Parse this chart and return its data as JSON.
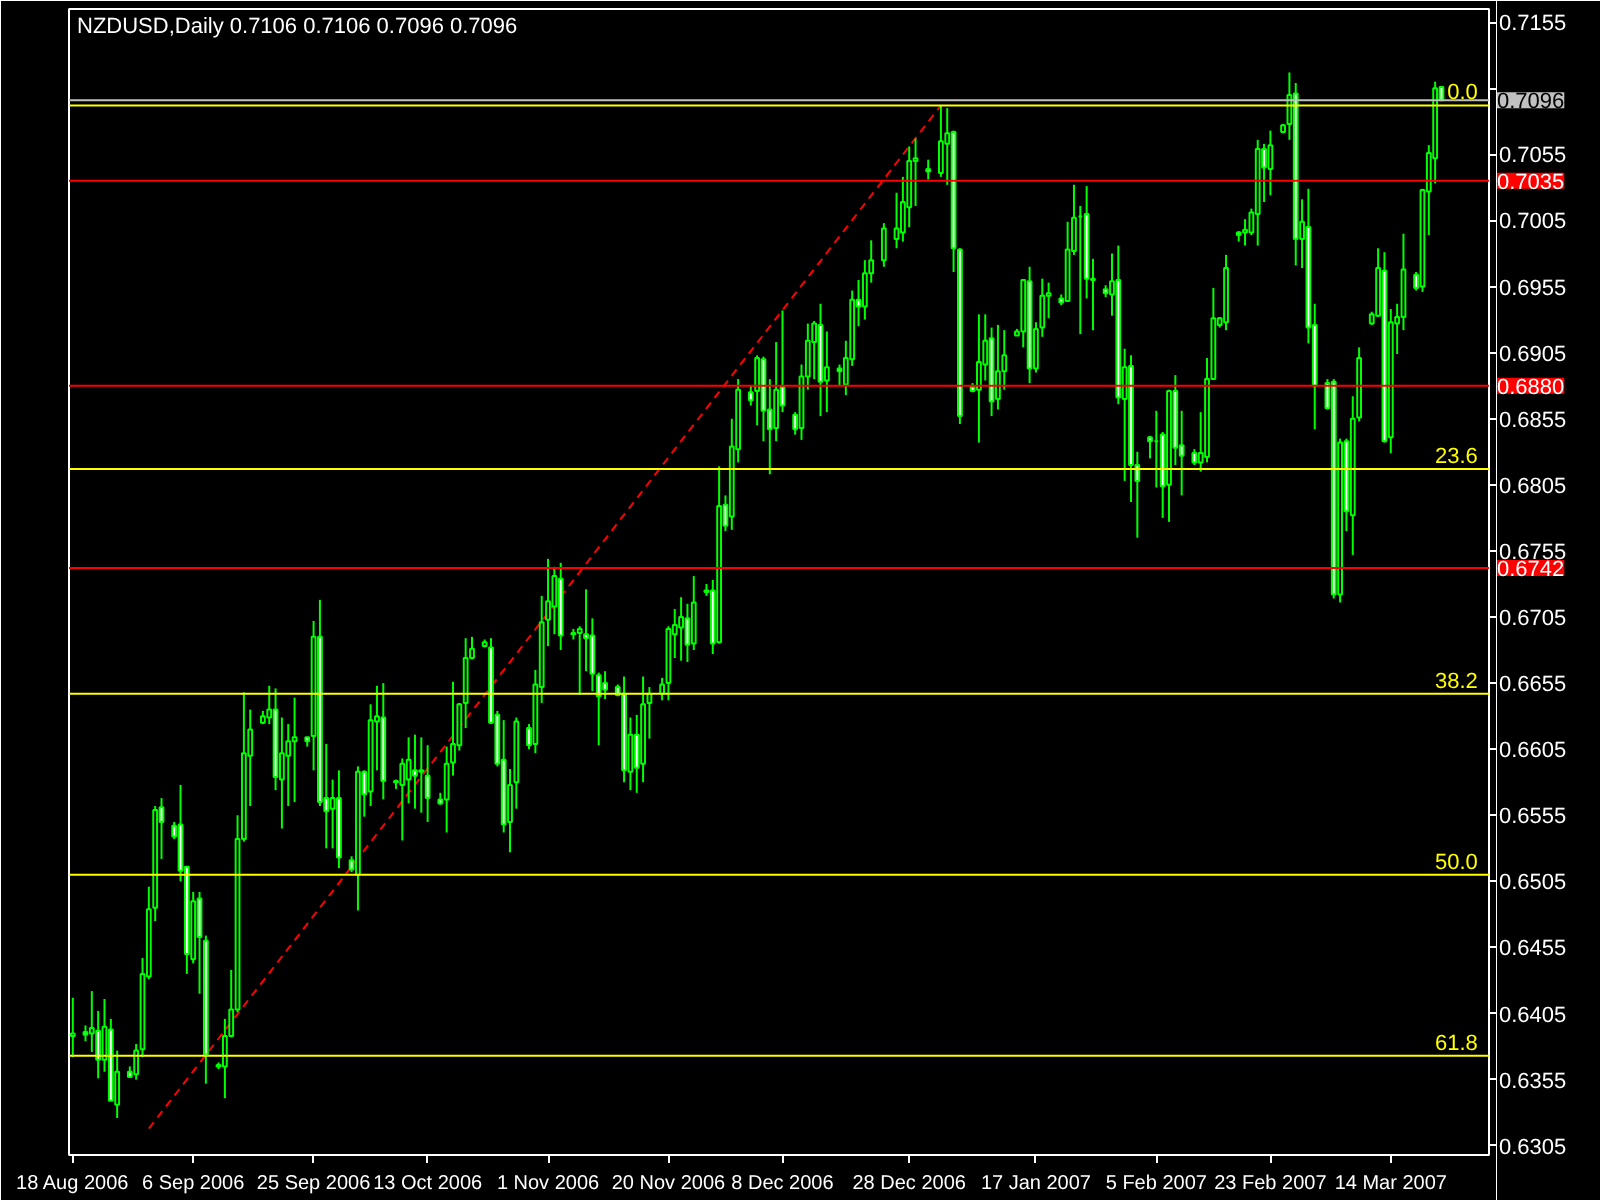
{
  "chart_data": {
    "type": "candlestick",
    "title": "NZDUSD,Daily  0.7106 0.7106 0.7096 0.7096",
    "xlim": [
      "2006-08-18",
      "2007-03-29"
    ],
    "xticks": [
      {
        "value": "2006-08-18",
        "label": "18 Aug 2006"
      },
      {
        "value": "2006-09-06",
        "label": "6 Sep 2006"
      },
      {
        "value": "2006-09-25",
        "label": "25 Sep 2006"
      },
      {
        "value": "2006-10-13",
        "label": "13 Oct 2006"
      },
      {
        "value": "2006-11-01",
        "label": "1 Nov 2006"
      },
      {
        "value": "2006-11-20",
        "label": "20 Nov 2006"
      },
      {
        "value": "2006-12-08",
        "label": "8 Dec 2006"
      },
      {
        "value": "2006-12-28",
        "label": "28 Dec 2006"
      },
      {
        "value": "2007-01-17",
        "label": "17 Jan 2007"
      },
      {
        "value": "2007-02-05",
        "label": "5 Feb 2007"
      },
      {
        "value": "2007-02-23",
        "label": "23 Feb 2007"
      },
      {
        "value": "2007-03-14",
        "label": "14 Mar 2007"
      }
    ],
    "ylim": [
      0.6298,
      0.7165
    ],
    "yticks": [
      0.7155,
      {
        "value": 0.7105,
        "label": null
      },
      0.7055,
      0.7005,
      0.6955,
      0.6905,
      0.6855,
      0.6805,
      0.6755,
      0.6705,
      0.6655,
      0.6605,
      0.6555,
      0.6505,
      0.6455,
      0.6405,
      0.6355,
      0.6305
    ],
    "ref_lines": [
      {
        "axis": "y",
        "value": 0.7096,
        "label": "0.7096",
        "color": "#c0c0c0"
      },
      {
        "axis": "y",
        "value": 0.7035,
        "label": "0.7035",
        "color": "#ff0000"
      },
      {
        "axis": "y",
        "value": 0.688,
        "label": "0.6880",
        "color": "#ff0000"
      },
      {
        "axis": "y",
        "value": 0.6742,
        "label": "0.6742",
        "color": "#ff0000"
      },
      {
        "axis": "y",
        "value": 0.7092,
        "color": "#ffff00"
      },
      {
        "axis": "y",
        "value": 0.6817,
        "color": "#ffff00"
      },
      {
        "axis": "y",
        "value": 0.6647,
        "color": "#ffff00"
      },
      {
        "axis": "y",
        "value": 0.651,
        "color": "#ffff00"
      },
      {
        "axis": "y",
        "value": 0.6373,
        "color": "#ffff00"
      }
    ],
    "annotations": [
      {
        "text": "0.0",
        "x": "2007-03-29",
        "y": 0.7092
      },
      {
        "text": "23.6",
        "x": "2007-03-29",
        "y": 0.6817
      },
      {
        "text": "38.2",
        "x": "2007-03-29",
        "y": 0.6647
      },
      {
        "text": "50.0",
        "x": "2007-03-29",
        "y": 0.651
      },
      {
        "text": "61.8",
        "x": "2007-03-29",
        "y": 0.6373
      }
    ],
    "series": [
      {
        "type": "line",
        "color": "#ff0000",
        "line_style": "dashed",
        "x": [
          "2006-08-30",
          "2007-01-02"
        ],
        "values": [
          0.6318,
          0.7092
        ]
      },
      {
        "color": "#00ff00",
        "x": [
          "2006-08-18",
          "2006-08-20",
          "2006-08-21",
          "2006-08-22",
          "2006-08-23",
          "2006-08-24",
          "2006-08-25",
          "2006-08-27",
          "2006-08-28",
          "2006-08-29",
          "2006-08-30",
          "2006-08-31",
          "2006-09-01",
          "2006-09-03",
          "2006-09-04",
          "2006-09-05",
          "2006-09-06",
          "2006-09-07",
          "2006-09-08",
          "2006-09-10",
          "2006-09-11",
          "2006-09-12",
          "2006-09-13",
          "2006-09-14",
          "2006-09-15",
          "2006-09-17",
          "2006-09-18",
          "2006-09-19",
          "2006-09-20",
          "2006-09-21",
          "2006-09-22",
          "2006-09-24",
          "2006-09-25",
          "2006-09-26",
          "2006-09-27",
          "2006-09-28",
          "2006-09-29",
          "2006-10-01",
          "2006-10-02",
          "2006-10-03",
          "2006-10-04",
          "2006-10-05",
          "2006-10-06",
          "2006-10-08",
          "2006-10-09",
          "2006-10-10",
          "2006-10-11",
          "2006-10-12",
          "2006-10-13",
          "2006-10-15",
          "2006-10-16",
          "2006-10-17",
          "2006-10-18",
          "2006-10-19",
          "2006-10-20",
          "2006-10-22",
          "2006-10-23",
          "2006-10-24",
          "2006-10-25",
          "2006-10-26",
          "2006-10-27",
          "2006-10-29",
          "2006-10-30",
          "2006-10-31",
          "2006-11-01",
          "2006-11-02",
          "2006-11-03",
          "2006-11-05",
          "2006-11-06",
          "2006-11-07",
          "2006-11-08",
          "2006-11-09",
          "2006-11-10",
          "2006-11-12",
          "2006-11-13",
          "2006-11-14",
          "2006-11-15",
          "2006-11-16",
          "2006-11-17",
          "2006-11-19",
          "2006-11-20",
          "2006-11-21",
          "2006-11-22",
          "2006-11-23",
          "2006-11-24",
          "2006-11-26",
          "2006-11-27",
          "2006-11-28",
          "2006-11-29",
          "2006-11-30",
          "2006-12-01",
          "2006-12-03",
          "2006-12-04",
          "2006-12-05",
          "2006-12-06",
          "2006-12-07",
          "2006-12-08",
          "2006-12-10",
          "2006-12-11",
          "2006-12-12",
          "2006-12-13",
          "2006-12-14",
          "2006-12-15",
          "2006-12-17",
          "2006-12-18",
          "2006-12-19",
          "2006-12-20",
          "2006-12-21",
          "2006-12-22",
          "2006-12-24",
          "2006-12-26",
          "2006-12-27",
          "2006-12-28",
          "2006-12-29",
          "2006-12-31",
          "2007-01-02",
          "2007-01-03",
          "2007-01-04",
          "2007-01-05",
          "2007-01-07",
          "2007-01-08",
          "2007-01-09",
          "2007-01-10",
          "2007-01-11",
          "2007-01-12",
          "2007-01-14",
          "2007-01-15",
          "2007-01-16",
          "2007-01-17",
          "2007-01-18",
          "2007-01-19",
          "2007-01-21",
          "2007-01-22",
          "2007-01-23",
          "2007-01-24",
          "2007-01-25",
          "2007-01-26",
          "2007-01-28",
          "2007-01-29",
          "2007-01-30",
          "2007-01-31",
          "2007-02-01",
          "2007-02-02",
          "2007-02-04",
          "2007-02-05",
          "2007-02-06",
          "2007-02-07",
          "2007-02-08",
          "2007-02-09",
          "2007-02-11",
          "2007-02-12",
          "2007-02-13",
          "2007-02-14",
          "2007-02-15",
          "2007-02-16",
          "2007-02-18",
          "2007-02-19",
          "2007-02-20",
          "2007-02-21",
          "2007-02-22",
          "2007-02-23",
          "2007-02-25",
          "2007-02-26",
          "2007-02-27",
          "2007-02-28",
          "2007-03-01",
          "2007-03-02",
          "2007-03-04",
          "2007-03-05",
          "2007-03-06",
          "2007-03-07",
          "2007-03-08",
          "2007-03-09",
          "2007-03-11",
          "2007-03-12",
          "2007-03-13",
          "2007-03-14",
          "2007-03-15",
          "2007-03-16",
          "2007-03-18",
          "2007-03-19",
          "2007-03-20",
          "2007-03-21",
          "2007-03-22"
        ],
        "ohlc": [
          [
            0.6388,
            0.6417,
            0.6372,
            0.639
          ],
          [
            0.6391,
            0.6396,
            0.6384,
            0.6389
          ],
          [
            0.639,
            0.6422,
            0.6376,
            0.6394
          ],
          [
            0.6392,
            0.6407,
            0.6356,
            0.637
          ],
          [
            0.637,
            0.6416,
            0.6361,
            0.6395
          ],
          [
            0.6393,
            0.6401,
            0.6339,
            0.6339
          ],
          [
            0.6336,
            0.6377,
            0.6326,
            0.6361
          ],
          [
            0.6361,
            0.6365,
            0.6357,
            0.6357
          ],
          [
            0.6359,
            0.6382,
            0.6355,
            0.6377
          ],
          [
            0.6378,
            0.6447,
            0.6372,
            0.6435
          ],
          [
            0.6433,
            0.6501,
            0.6431,
            0.6484
          ],
          [
            0.6485,
            0.6562,
            0.6475,
            0.6559
          ],
          [
            0.6561,
            0.6568,
            0.6522,
            0.655
          ],
          [
            0.6547,
            0.655,
            0.6537,
            0.6539
          ],
          [
            0.6548,
            0.6578,
            0.6505,
            0.6513
          ],
          [
            0.6516,
            0.6516,
            0.6435,
            0.645
          ],
          [
            0.6446,
            0.6497,
            0.6443,
            0.649
          ],
          [
            0.6492,
            0.6497,
            0.642,
            0.6463
          ],
          [
            0.646,
            0.6464,
            0.6352,
            0.6374
          ],
          [
            0.6366,
            0.6368,
            0.6363,
            0.6365
          ],
          [
            0.6365,
            0.6401,
            0.6341,
            0.6388
          ],
          [
            0.6388,
            0.6438,
            0.6387,
            0.6408
          ],
          [
            0.6408,
            0.6555,
            0.6406,
            0.6537
          ],
          [
            0.6537,
            0.6648,
            0.6535,
            0.6602
          ],
          [
            0.66,
            0.6635,
            0.6562,
            0.662
          ],
          [
            0.6625,
            0.6634,
            0.6624,
            0.663
          ],
          [
            0.6629,
            0.6653,
            0.6624,
            0.6635
          ],
          [
            0.6635,
            0.6651,
            0.6574,
            0.6584
          ],
          [
            0.6582,
            0.6629,
            0.6545,
            0.6602
          ],
          [
            0.66,
            0.6624,
            0.6562,
            0.6611
          ],
          [
            0.6611,
            0.6644,
            0.6565,
            0.6614
          ],
          [
            0.6614,
            0.6614,
            0.6607,
            0.6611
          ],
          [
            0.6615,
            0.6702,
            0.6589,
            0.669
          ],
          [
            0.669,
            0.6718,
            0.6562,
            0.6565
          ],
          [
            0.6568,
            0.6609,
            0.653,
            0.6558
          ],
          [
            0.656,
            0.6582,
            0.653,
            0.6568
          ],
          [
            0.6568,
            0.6589,
            0.6515,
            0.6523
          ],
          [
            0.6521,
            0.6524,
            0.6512,
            0.6514
          ],
          [
            0.651,
            0.6592,
            0.6483,
            0.6588
          ],
          [
            0.6588,
            0.6589,
            0.6554,
            0.6571
          ],
          [
            0.6573,
            0.6639,
            0.6562,
            0.6627
          ],
          [
            0.6626,
            0.6653,
            0.6589,
            0.663
          ],
          [
            0.6629,
            0.6655,
            0.6567,
            0.6581
          ],
          [
            0.6581,
            0.6582,
            0.6575,
            0.658
          ],
          [
            0.6578,
            0.6598,
            0.6536,
            0.6594
          ],
          [
            0.6582,
            0.6614,
            0.6564,
            0.6597
          ],
          [
            0.6589,
            0.6616,
            0.656,
            0.6585
          ],
          [
            0.6588,
            0.6614,
            0.6557,
            0.6589
          ],
          [
            0.6585,
            0.6608,
            0.655,
            0.6568
          ],
          [
            0.6567,
            0.6572,
            0.6563,
            0.6564
          ],
          [
            0.6567,
            0.6607,
            0.6542,
            0.6594
          ],
          [
            0.6595,
            0.6656,
            0.6585,
            0.6609
          ],
          [
            0.6608,
            0.664,
            0.6604,
            0.6639
          ],
          [
            0.664,
            0.6689,
            0.6621,
            0.6674
          ],
          [
            0.6674,
            0.669,
            0.6673,
            0.6681
          ],
          [
            0.6683,
            0.6688,
            0.6682,
            0.6686
          ],
          [
            0.6682,
            0.6689,
            0.6624,
            0.6625
          ],
          [
            0.6631,
            0.6634,
            0.6592,
            0.6594
          ],
          [
            0.6597,
            0.6627,
            0.6542,
            0.6548
          ],
          [
            0.655,
            0.659,
            0.6527,
            0.6578
          ],
          [
            0.658,
            0.6629,
            0.656,
            0.6626
          ],
          [
            0.6621,
            0.6624,
            0.6605,
            0.6608
          ],
          [
            0.6609,
            0.6665,
            0.6602,
            0.6654
          ],
          [
            0.6652,
            0.6721,
            0.664,
            0.6701
          ],
          [
            0.6703,
            0.6749,
            0.6683,
            0.6717
          ],
          [
            0.6713,
            0.6743,
            0.6692,
            0.6736
          ],
          [
            0.6734,
            0.6746,
            0.668,
            0.6691
          ],
          [
            0.6692,
            0.6696,
            0.6688,
            0.6693
          ],
          [
            0.6693,
            0.6698,
            0.6646,
            0.6696
          ],
          [
            0.6692,
            0.6726,
            0.6664,
            0.6689
          ],
          [
            0.6691,
            0.6704,
            0.6649,
            0.6662
          ],
          [
            0.6661,
            0.6663,
            0.6608,
            0.6645
          ],
          [
            0.6655,
            0.6664,
            0.6643,
            0.665
          ],
          [
            0.6652,
            0.6654,
            0.6645,
            0.6646
          ],
          [
            0.6647,
            0.666,
            0.658,
            0.6589
          ],
          [
            0.6588,
            0.6629,
            0.6574,
            0.6616
          ],
          [
            0.6616,
            0.6631,
            0.6572,
            0.6591
          ],
          [
            0.6594,
            0.666,
            0.658,
            0.6639
          ],
          [
            0.664,
            0.6652,
            0.6613,
            0.6647
          ],
          [
            0.6647,
            0.6659,
            0.6642,
            0.6654
          ],
          [
            0.6655,
            0.6698,
            0.6642,
            0.6696
          ],
          [
            0.6692,
            0.6711,
            0.6674,
            0.6699
          ],
          [
            0.6697,
            0.672,
            0.6672,
            0.6705
          ],
          [
            0.6704,
            0.6715,
            0.6671,
            0.6684
          ],
          [
            0.6685,
            0.6736,
            0.668,
            0.6716
          ],
          [
            0.6724,
            0.673,
            0.6721,
            0.6725
          ],
          [
            0.6725,
            0.6733,
            0.6677,
            0.6685
          ],
          [
            0.6686,
            0.6819,
            0.6685,
            0.6789
          ],
          [
            0.679,
            0.6797,
            0.677,
            0.6774
          ],
          [
            0.6781,
            0.6855,
            0.6771,
            0.6834
          ],
          [
            0.6832,
            0.6885,
            0.6822,
            0.6877
          ],
          [
            0.6875,
            0.688,
            0.6865,
            0.6869
          ],
          [
            0.6876,
            0.6903,
            0.685,
            0.6901
          ],
          [
            0.69,
            0.6902,
            0.6838,
            0.6861
          ],
          [
            0.6862,
            0.6885,
            0.6813,
            0.6847
          ],
          [
            0.6848,
            0.6913,
            0.6838,
            0.6877
          ],
          [
            0.6879,
            0.6937,
            0.686,
            0.6865
          ],
          [
            0.6858,
            0.686,
            0.6843,
            0.6847
          ],
          [
            0.6848,
            0.6896,
            0.6839,
            0.6887
          ],
          [
            0.6887,
            0.6927,
            0.6877,
            0.6914
          ],
          [
            0.6913,
            0.6929,
            0.6885,
            0.6927
          ],
          [
            0.6926,
            0.6942,
            0.6857,
            0.6883
          ],
          [
            0.6884,
            0.6921,
            0.686,
            0.6894
          ],
          [
            0.6893,
            0.6896,
            0.688,
            0.6891
          ],
          [
            0.6881,
            0.6914,
            0.6873,
            0.6901
          ],
          [
            0.69,
            0.6952,
            0.6895,
            0.6945
          ],
          [
            0.6945,
            0.696,
            0.6925,
            0.694
          ],
          [
            0.694,
            0.6975,
            0.693,
            0.6965
          ],
          [
            0.6965,
            0.699,
            0.6958,
            0.6975
          ],
          [
            0.6975,
            0.7003,
            0.697,
            0.6999
          ],
          [
            0.6991,
            0.7026,
            0.6984,
            0.6999
          ],
          [
            0.6996,
            0.7038,
            0.6989,
            0.7019
          ],
          [
            0.7015,
            0.7061,
            0.7,
            0.705
          ],
          [
            0.705,
            0.7067,
            0.7016,
            0.7052
          ],
          [
            0.7044,
            0.7051,
            0.7036,
            0.7042
          ],
          [
            0.7041,
            0.7092,
            0.7038,
            0.7065
          ],
          [
            0.7063,
            0.709,
            0.7032,
            0.7071
          ],
          [
            0.7072,
            0.7073,
            0.6966,
            0.6984
          ],
          [
            0.6983,
            0.6984,
            0.6851,
            0.6857
          ],
          [
            0.6879,
            0.6882,
            0.6875,
            0.6876
          ],
          [
            0.6877,
            0.6934,
            0.6837,
            0.6898
          ],
          [
            0.6896,
            0.6934,
            0.6884,
            0.6914
          ],
          [
            0.6916,
            0.6924,
            0.6857,
            0.6868
          ],
          [
            0.687,
            0.6926,
            0.6862,
            0.6891
          ],
          [
            0.6891,
            0.6922,
            0.6877,
            0.6903
          ],
          [
            0.6918,
            0.6923,
            0.6918,
            0.6921
          ],
          [
            0.6921,
            0.696,
            0.6909,
            0.696
          ],
          [
            0.6959,
            0.697,
            0.6882,
            0.6893
          ],
          [
            0.6893,
            0.6928,
            0.689,
            0.6923
          ],
          [
            0.6924,
            0.6961,
            0.6917,
            0.6948
          ],
          [
            0.6948,
            0.6958,
            0.6931,
            0.695
          ],
          [
            0.6946,
            0.6949,
            0.6941,
            0.6943
          ],
          [
            0.6944,
            0.7004,
            0.6944,
            0.6983
          ],
          [
            0.6982,
            0.7032,
            0.6979,
            0.7007
          ],
          [
            0.7008,
            0.7016,
            0.6919,
            0.7008
          ],
          [
            0.701,
            0.7031,
            0.6946,
            0.6961
          ],
          [
            0.6961,
            0.6976,
            0.6922,
            0.696
          ],
          [
            0.6953,
            0.6956,
            0.6947,
            0.695
          ],
          [
            0.6949,
            0.698,
            0.6933,
            0.6959
          ],
          [
            0.696,
            0.6986,
            0.6866,
            0.6871
          ],
          [
            0.687,
            0.6908,
            0.6808,
            0.6894
          ],
          [
            0.6895,
            0.6903,
            0.6792,
            0.682
          ],
          [
            0.682,
            0.683,
            0.6765,
            0.6808
          ],
          [
            0.6841,
            0.6842,
            0.6825,
            0.6838
          ],
          [
            0.6838,
            0.6861,
            0.6803,
            0.6838
          ],
          [
            0.6843,
            0.6845,
            0.678,
            0.6804
          ],
          [
            0.6805,
            0.6877,
            0.6777,
            0.6876
          ],
          [
            0.6876,
            0.6888,
            0.682,
            0.6833
          ],
          [
            0.6835,
            0.6861,
            0.6797,
            0.6827
          ],
          [
            0.6829,
            0.6832,
            0.682,
            0.6822
          ],
          [
            0.6822,
            0.686,
            0.6815,
            0.6829
          ],
          [
            0.6826,
            0.6901,
            0.6822,
            0.6885
          ],
          [
            0.6885,
            0.6954,
            0.6885,
            0.6931
          ],
          [
            0.6926,
            0.6932,
            0.6924,
            0.6931
          ],
          [
            0.6928,
            0.6979,
            0.6922,
            0.6969
          ],
          [
            0.6996,
            0.6997,
            0.6989,
            0.6994
          ],
          [
            0.6996,
            0.7006,
            0.6986,
            0.6998
          ],
          [
            0.6996,
            0.7014,
            0.6994,
            0.7011
          ],
          [
            0.701,
            0.7066,
            0.6986,
            0.7059
          ],
          [
            0.7059,
            0.7063,
            0.7019,
            0.7045
          ],
          [
            0.7044,
            0.7073,
            0.7024,
            0.7062
          ],
          [
            0.7072,
            0.7078,
            0.7071,
            0.7077
          ],
          [
            0.7078,
            0.7117,
            0.7066,
            0.71
          ],
          [
            0.7101,
            0.7109,
            0.6971,
            0.6991
          ],
          [
            0.6991,
            0.7021,
            0.6969,
            0.7004
          ],
          [
            0.7,
            0.7029,
            0.6912,
            0.6924
          ],
          [
            0.6926,
            0.6942,
            0.6847,
            0.688
          ],
          [
            0.6882,
            0.6885,
            0.6862,
            0.6863
          ],
          [
            0.6883,
            0.6885,
            0.6719,
            0.6722
          ],
          [
            0.6722,
            0.684,
            0.6716,
            0.6837
          ],
          [
            0.6838,
            0.684,
            0.677,
            0.6785
          ],
          [
            0.6782,
            0.6872,
            0.6752,
            0.6855
          ],
          [
            0.6856,
            0.6909,
            0.6853,
            0.6901
          ],
          [
            0.6927,
            0.6936,
            0.6926,
            0.6934
          ],
          [
            0.6933,
            0.6984,
            0.6932,
            0.6969
          ],
          [
            0.6967,
            0.6981,
            0.6837,
            0.6838
          ],
          [
            0.6841,
            0.6938,
            0.6829,
            0.6928
          ],
          [
            0.6927,
            0.6942,
            0.6904,
            0.6932
          ],
          [
            0.6932,
            0.6995,
            0.6922,
            0.6968
          ],
          [
            0.6964,
            0.6966,
            0.6952,
            0.6954
          ],
          [
            0.6955,
            0.7029,
            0.6951,
            0.7028
          ],
          [
            0.7027,
            0.7062,
            0.6994,
            0.7056
          ],
          [
            0.7052,
            0.711,
            0.7033,
            0.7105
          ],
          [
            0.7106,
            0.7106,
            0.7096,
            0.7096
          ]
        ]
      }
    ]
  }
}
